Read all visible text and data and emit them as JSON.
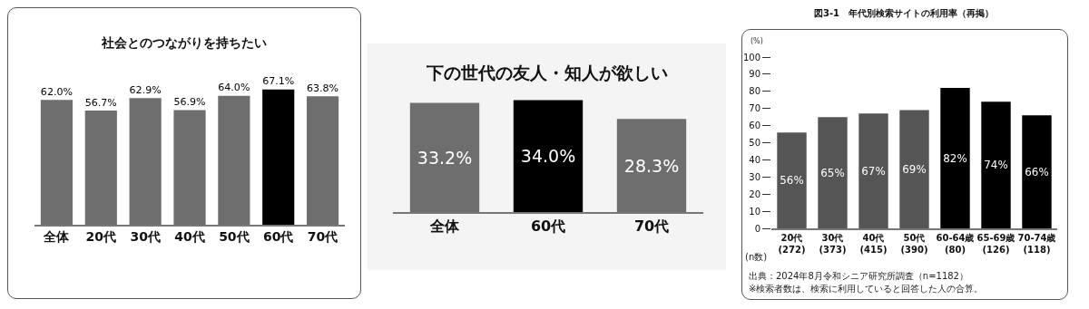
{
  "chart_data": [
    {
      "type": "bar",
      "title": "社会とのつながりを持ちたい",
      "categories": [
        "全体",
        "20代",
        "30代",
        "40代",
        "50代",
        "60代",
        "70代"
      ],
      "values": [
        62.0,
        56.7,
        62.9,
        56.9,
        64.0,
        67.1,
        63.8
      ],
      "colors": [
        "#6e6e6e",
        "#6e6e6e",
        "#6e6e6e",
        "#6e6e6e",
        "#6e6e6e",
        "#000000",
        "#6e6e6e"
      ],
      "value_labels": [
        "62.0%",
        "56.7%",
        "62.9%",
        "56.9%",
        "64.0%",
        "67.1%",
        "63.8%"
      ],
      "tick_labels": "x"
    },
    {
      "type": "bar",
      "title": "下の世代の友人・知人が欲しい",
      "categories": [
        "全体",
        "60代",
        "70代"
      ],
      "values": [
        33.2,
        34.0,
        28.3
      ],
      "colors": [
        "#6e6e6e",
        "#000000",
        "#6e6e6e"
      ],
      "value_labels": [
        "33.2%",
        "34.0%",
        "28.3%"
      ],
      "tick_labels": "x"
    },
    {
      "type": "bar",
      "title": "図3-1　年代別検索サイトの利用率（再掲）",
      "ylabel": "(%)",
      "categories": [
        "20代\n(272)",
        "30代\n(373)",
        "40代\n(415)",
        "50代\n(390)",
        "60-64歳\n(80)",
        "65-69歳\n(126)",
        "70-74歳\n(118)"
      ],
      "values": [
        56,
        65,
        67,
        69,
        82,
        74,
        66
      ],
      "colors": [
        "#555555",
        "#555555",
        "#555555",
        "#555555",
        "#000000",
        "#000000",
        "#000000"
      ],
      "value_labels": [
        "56%",
        "65%",
        "67%",
        "69%",
        "82%",
        "74%",
        "66%"
      ],
      "ylim": [
        0,
        100
      ],
      "yticks": [
        0,
        10,
        20,
        30,
        40,
        50,
        60,
        70,
        80,
        90,
        100
      ],
      "annotations": [
        "(n数)",
        "出典：2024年8月令和シニア研究所調査（n=1182）",
        "※検索者数は、検索に利用していると回答した人の合算。"
      ]
    }
  ]
}
